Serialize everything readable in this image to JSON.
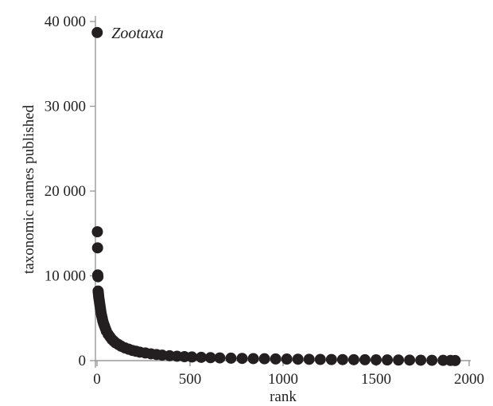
{
  "chart_data": {
    "type": "scatter",
    "title": "",
    "xlabel": "rank",
    "ylabel": "taxonomic names published",
    "xlim": [
      0,
      2000
    ],
    "ylim": [
      0,
      40000
    ],
    "x_ticks": [
      0,
      500,
      1000,
      1500,
      2000
    ],
    "y_ticks": [
      0,
      10000,
      20000,
      30000,
      40000
    ],
    "x_tick_labels": [
      "0",
      "500",
      "1000",
      "1500",
      "2000"
    ],
    "y_tick_labels": [
      "0",
      "10 000",
      "20 000",
      "30 000",
      "40 000"
    ],
    "grid": false,
    "point_color": "#231f20",
    "annotations": [
      {
        "text": "Zootaxa",
        "x": 1,
        "y": 38700
      }
    ],
    "series": [
      {
        "points": [
          [
            1,
            38700
          ],
          [
            2,
            15200
          ],
          [
            3,
            13300
          ],
          [
            4,
            10100
          ],
          [
            5,
            9900
          ],
          [
            6,
            8200
          ],
          [
            7,
            8000
          ],
          [
            8,
            7800
          ],
          [
            9,
            7600
          ],
          [
            10,
            7400
          ],
          [
            12,
            7100
          ],
          [
            14,
            6800
          ],
          [
            16,
            6500
          ],
          [
            18,
            6200
          ],
          [
            20,
            5900
          ],
          [
            22,
            5600
          ],
          [
            25,
            5300
          ],
          [
            28,
            5000
          ],
          [
            31,
            4700
          ],
          [
            35,
            4400
          ],
          [
            40,
            4100
          ],
          [
            45,
            3800
          ],
          [
            50,
            3500
          ],
          [
            60,
            3100
          ],
          [
            70,
            2800
          ],
          [
            80,
            2500
          ],
          [
            90,
            2300
          ],
          [
            100,
            2100
          ],
          [
            115,
            1900
          ],
          [
            130,
            1700
          ],
          [
            150,
            1500
          ],
          [
            170,
            1350
          ],
          [
            190,
            1200
          ],
          [
            210,
            1100
          ],
          [
            230,
            1000
          ],
          [
            260,
            900
          ],
          [
            290,
            800
          ],
          [
            320,
            720
          ],
          [
            350,
            650
          ],
          [
            390,
            580
          ],
          [
            430,
            520
          ],
          [
            470,
            470
          ],
          [
            510,
            430
          ],
          [
            560,
            390
          ],
          [
            610,
            350
          ],
          [
            660,
            320
          ],
          [
            720,
            290
          ],
          [
            780,
            260
          ],
          [
            840,
            240
          ],
          [
            900,
            220
          ],
          [
            960,
            200
          ],
          [
            1020,
            185
          ],
          [
            1080,
            170
          ],
          [
            1140,
            155
          ],
          [
            1200,
            140
          ],
          [
            1260,
            130
          ],
          [
            1320,
            120
          ],
          [
            1380,
            110
          ],
          [
            1440,
            100
          ],
          [
            1500,
            90
          ],
          [
            1560,
            80
          ],
          [
            1620,
            70
          ],
          [
            1680,
            60
          ],
          [
            1740,
            50
          ],
          [
            1800,
            40
          ],
          [
            1860,
            30
          ],
          [
            1900,
            20
          ],
          [
            1925,
            10
          ]
        ]
      }
    ]
  }
}
